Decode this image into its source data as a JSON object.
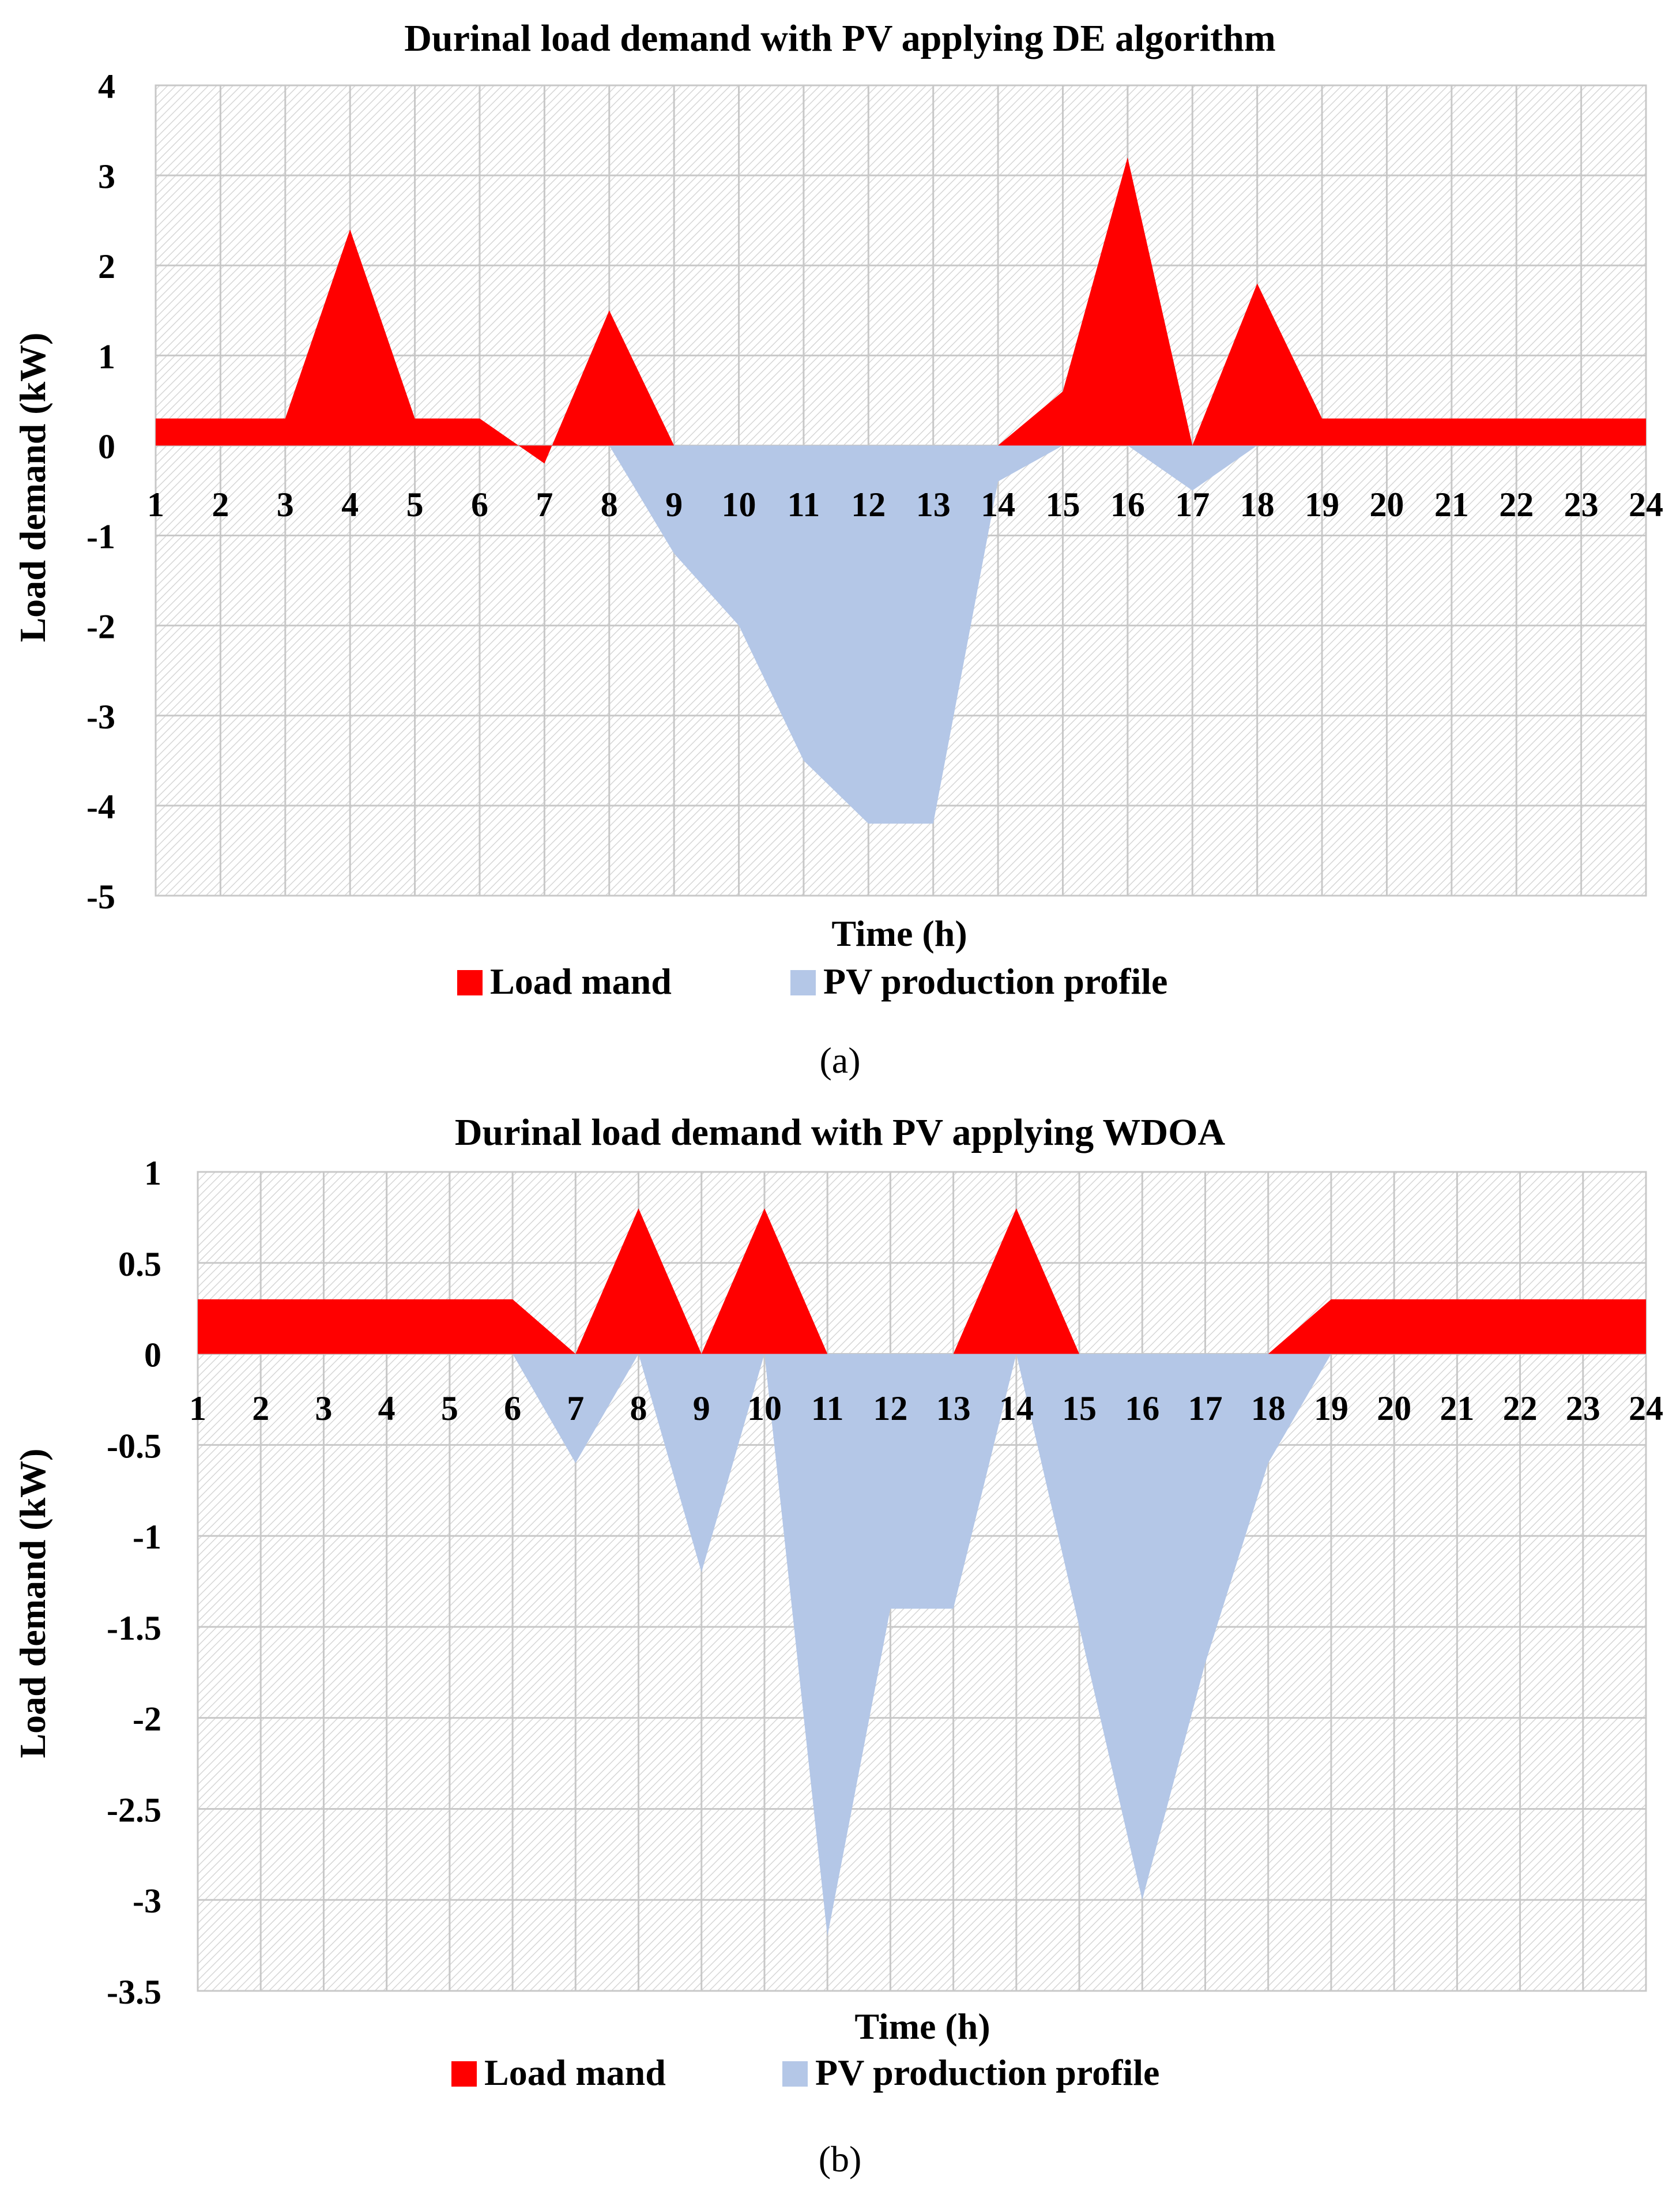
{
  "colors": {
    "load": "#ff0000",
    "pv": "#b4c7e7",
    "grid": "#c8c8c8",
    "hatch": "#d0d0d0",
    "text": "#000000"
  },
  "chart_data": [
    {
      "type": "area",
      "title": "Durinal load demand with PV applying DE algorithm",
      "xlabel": "Time (h)",
      "ylabel": "Load demand (kW)",
      "caption": "(a)",
      "x": [
        1,
        2,
        3,
        4,
        5,
        6,
        7,
        8,
        9,
        10,
        11,
        12,
        13,
        14,
        15,
        16,
        17,
        18,
        19,
        20,
        21,
        22,
        23,
        24
      ],
      "x_tick_labels": [
        "1",
        "2",
        "3",
        "4",
        "5",
        "6",
        "7",
        "8",
        "9",
        "10",
        "11",
        "12",
        "13",
        "14",
        "15",
        "16",
        "17",
        "18",
        "19",
        "20",
        "21",
        "22",
        "23",
        "24"
      ],
      "ylim": [
        -5,
        4
      ],
      "y_ticks": [
        4,
        3,
        2,
        1,
        0,
        -1,
        -2,
        -3,
        -4,
        -5
      ],
      "y_tick_labels": [
        "4",
        "3",
        "2",
        "1",
        "0",
        "-1",
        "-2",
        "-3",
        "-4",
        "-5"
      ],
      "legend": "bottom",
      "series": [
        {
          "name": "Load mand",
          "color_key": "load",
          "values": [
            0.3,
            0.3,
            0.3,
            2.4,
            0.3,
            0.3,
            -0.2,
            1.5,
            0,
            0,
            0,
            0,
            0,
            0,
            0.6,
            3.2,
            0,
            1.8,
            0.3,
            0.3,
            0.3,
            0.3,
            0.3,
            0.3
          ]
        },
        {
          "name": "PV production profile",
          "color_key": "pv",
          "values": [
            0,
            0,
            0,
            0,
            0,
            0,
            0,
            0,
            -1.2,
            -2,
            -3.5,
            -4.2,
            -4.2,
            -0.4,
            0,
            0,
            -0.5,
            0,
            0,
            0,
            0,
            0,
            0,
            0
          ]
        }
      ]
    },
    {
      "type": "area",
      "title": "Durinal load demand with PV applying WDOA",
      "xlabel": "Time (h)",
      "ylabel": "Load demand (kW)",
      "caption": "(b)",
      "x": [
        1,
        2,
        3,
        4,
        5,
        6,
        7,
        8,
        9,
        10,
        11,
        12,
        13,
        14,
        15,
        16,
        17,
        18,
        19,
        20,
        21,
        22,
        23,
        24
      ],
      "x_tick_labels": [
        "1",
        "2",
        "3",
        "4",
        "5",
        "6",
        "7",
        "8",
        "9",
        "10",
        "11",
        "12",
        "13",
        "14",
        "15",
        "16",
        "17",
        "18",
        "19",
        "20",
        "21",
        "22",
        "23",
        "24"
      ],
      "ylim": [
        -3.5,
        1
      ],
      "y_ticks": [
        1,
        0.5,
        0,
        -0.5,
        -1,
        -1.5,
        -2,
        -2.5,
        -3,
        -3.5
      ],
      "y_tick_labels": [
        "1",
        "0.5",
        "0",
        "-0.5",
        "-1",
        "-1.5",
        "-2",
        "-2.5",
        "-3",
        "-3.5"
      ],
      "legend": "bottom",
      "series": [
        {
          "name": "Load mand",
          "color_key": "load",
          "values": [
            0.3,
            0.3,
            0.3,
            0.3,
            0.3,
            0.3,
            0,
            0.8,
            0,
            0.8,
            0,
            0,
            0,
            0.8,
            0,
            0,
            0,
            0,
            0.3,
            0.3,
            0.3,
            0.3,
            0.3,
            0.3
          ]
        },
        {
          "name": "PV production profile",
          "color_key": "pv",
          "values": [
            0,
            0,
            0,
            0,
            0,
            0,
            -0.6,
            0,
            -1.2,
            0,
            -3.2,
            -1.4,
            -1.4,
            0,
            -1.5,
            -3.0,
            -1.7,
            -0.6,
            0,
            0,
            0,
            0,
            0,
            0
          ]
        }
      ]
    }
  ]
}
